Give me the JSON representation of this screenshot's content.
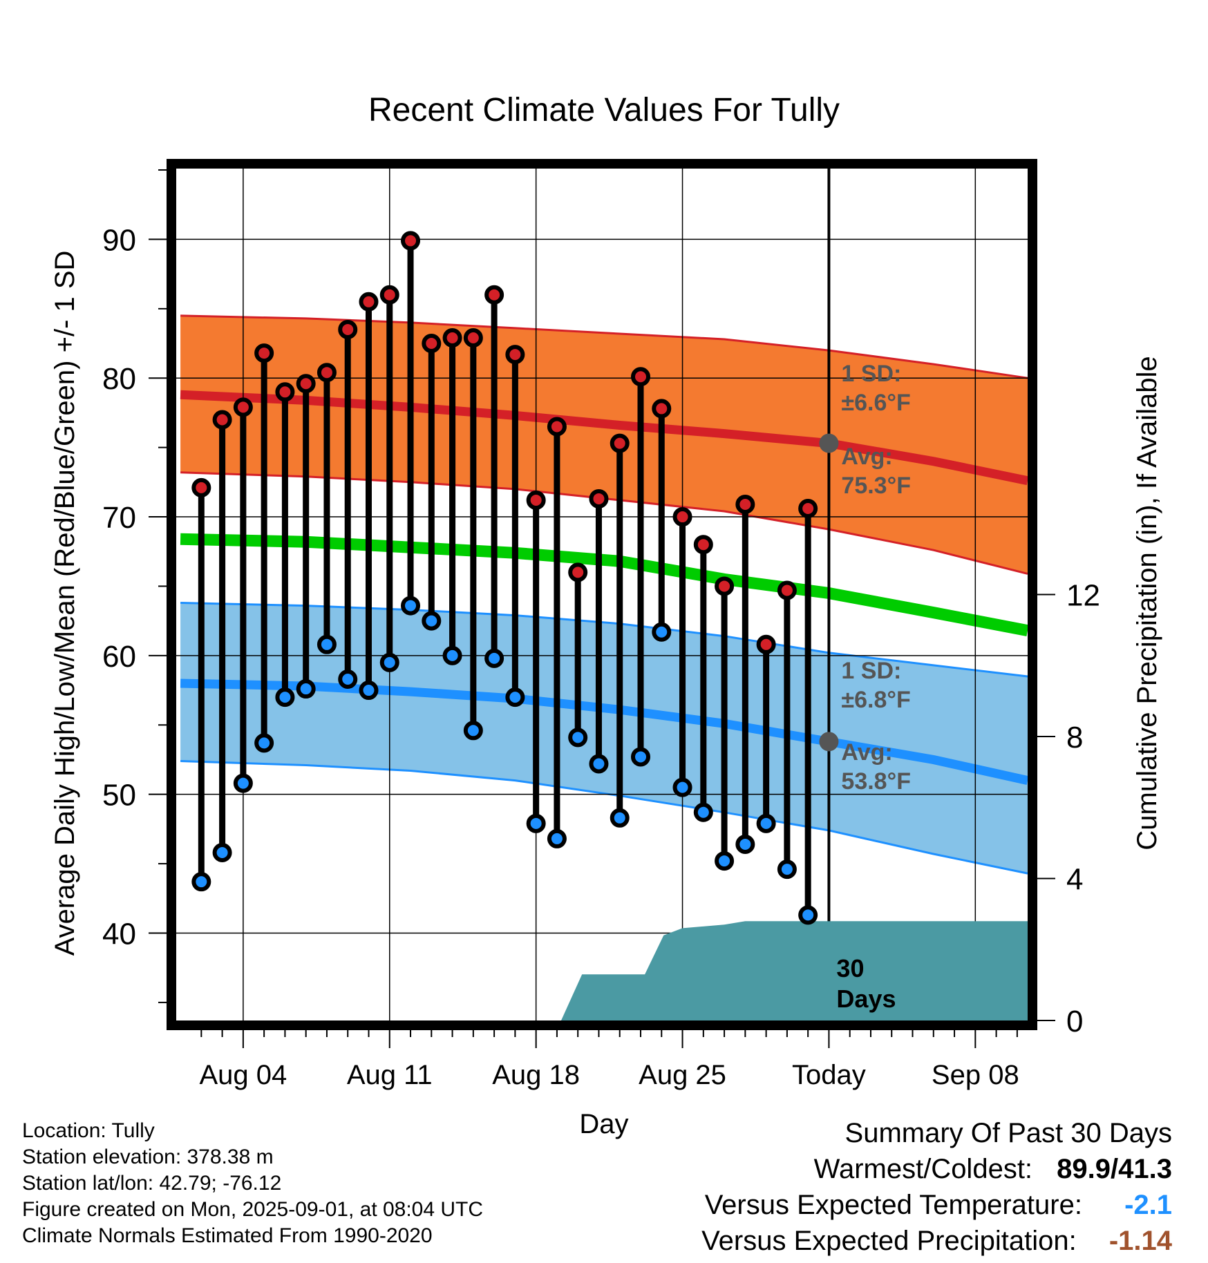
{
  "chart_data": {
    "type": "line",
    "title": "Recent Climate Values For Tully",
    "xlabel": "Day",
    "ylabel_left": "Average Daily High/Low/Mean (Red/Blue/Green) +/- 1 SD",
    "ylabel_right": "Cumulative Precipitation (in), If Available",
    "x_tick_labels": [
      "Aug 04",
      "Aug 11",
      "Aug 18",
      "Aug 25",
      "Today",
      "Sep 08"
    ],
    "x_tick_days": [
      4,
      11,
      18,
      25,
      32,
      39
    ],
    "xlim_days": [
      0.8,
      41.5
    ],
    "today_day": 32,
    "y_left_ticks": [
      40,
      50,
      60,
      70,
      80,
      90
    ],
    "y_left_lim": [
      33.7,
      95.1
    ],
    "y_right_ticks": [
      0,
      4,
      8,
      12
    ],
    "y_right_lim": [
      0,
      24
    ],
    "grid": true,
    "daily_obs": {
      "days": [
        2,
        3,
        4,
        5,
        6,
        7,
        8,
        9,
        10,
        11,
        12,
        13,
        14,
        15,
        16,
        17,
        18,
        19,
        20,
        21,
        22,
        23,
        24,
        25,
        26,
        27,
        28,
        29,
        30,
        31
      ],
      "highs": [
        72.1,
        77.0,
        77.9,
        81.8,
        79.0,
        79.6,
        80.4,
        83.5,
        85.5,
        86.0,
        89.9,
        82.5,
        82.9,
        82.9,
        86.0,
        81.7,
        71.2,
        76.5,
        66.0,
        71.3,
        75.3,
        80.1,
        77.8,
        70.0,
        68.0,
        65.0,
        70.9,
        60.8,
        64.7,
        70.6
      ],
      "lows": [
        43.7,
        45.8,
        50.8,
        53.7,
        57.0,
        57.6,
        60.8,
        58.3,
        57.5,
        59.5,
        63.6,
        62.5,
        60.0,
        54.6,
        59.8,
        57.0,
        47.9,
        46.8,
        54.1,
        52.2,
        48.3,
        52.7,
        61.7,
        50.5,
        48.7,
        45.2,
        46.4,
        47.9,
        44.6,
        41.3
      ]
    },
    "normal_high": {
      "days": [
        1,
        7,
        12,
        17,
        22,
        27,
        32,
        37,
        41.5
      ],
      "mean": [
        78.8,
        78.4,
        77.9,
        77.3,
        76.6,
        76.0,
        75.3,
        74.0,
        72.6
      ],
      "upper": [
        84.5,
        84.3,
        84.0,
        83.6,
        83.2,
        82.8,
        82.0,
        81.0,
        80.0
      ],
      "lower": [
        73.2,
        72.9,
        72.5,
        72.0,
        71.2,
        70.4,
        69.1,
        67.6,
        65.9
      ]
    },
    "normal_mean": {
      "days": [
        1,
        7,
        12,
        17,
        22,
        27,
        32,
        37,
        41.5
      ],
      "mean": [
        68.4,
        68.2,
        67.8,
        67.4,
        66.8,
        65.5,
        64.5,
        63.1,
        61.8
      ]
    },
    "normal_low": {
      "days": [
        1,
        7,
        12,
        17,
        22,
        27,
        32,
        37,
        41.5
      ],
      "mean": [
        58.0,
        57.8,
        57.4,
        56.9,
        56.1,
        55.1,
        53.8,
        52.5,
        51.0
      ],
      "upper": [
        63.8,
        63.6,
        63.3,
        62.9,
        62.3,
        61.4,
        60.2,
        59.3,
        58.5
      ],
      "lower": [
        52.4,
        52.1,
        51.7,
        51.0,
        49.9,
        48.7,
        47.4,
        45.7,
        44.3
      ]
    },
    "cumulative_precip": {
      "days": [
        19.2,
        20.2,
        21.2,
        22.2,
        23.2,
        24.1,
        25.0,
        27.0,
        28.0,
        41.5
      ],
      "values": [
        0,
        1.3,
        1.3,
        1.3,
        1.3,
        2.4,
        2.6,
        2.7,
        2.8,
        2.8
      ]
    },
    "annotations": {
      "high_sd_line1": "1 SD:",
      "high_sd_line2": "±6.6°F",
      "high_avg_line1": "Avg:",
      "high_avg_line2": "75.3°F",
      "low_sd_line1": "1 SD:",
      "low_sd_line2": "±6.8°F",
      "low_avg_line1": "Avg:",
      "low_avg_line2": "53.8°F",
      "precip_line1": "30",
      "precip_line2": "Days"
    },
    "colors": {
      "high_band": "#f47a30",
      "high_line": "#d42027",
      "low_band": "#85c2e8",
      "low_line": "#1e90ff",
      "mean_line": "#00cc00",
      "precip": "#4b9aa3",
      "high_marker": "#d42027",
      "low_marker": "#1e90ff",
      "annotation": "#555555"
    }
  },
  "info": {
    "location": "Location: Tully",
    "elevation": "Station elevation: 378.38 m",
    "latlon": "Station lat/lon: 42.79; -76.12",
    "created": "Figure created on Mon, 2025-09-01, at 08:04 UTC",
    "normals": "Climate Normals Estimated From 1990-2020"
  },
  "summary": {
    "title": "Summary Of Past 30 Days",
    "warmest_label": "Warmest/Coldest:",
    "warmest_value": "89.9/41.3",
    "temp_label": "Versus Expected Temperature:",
    "temp_value": "-2.1",
    "temp_color": "#1e90ff",
    "precip_label": "Versus Expected Precipitation:",
    "precip_value": "-1.14",
    "precip_color": "#a0522d"
  }
}
